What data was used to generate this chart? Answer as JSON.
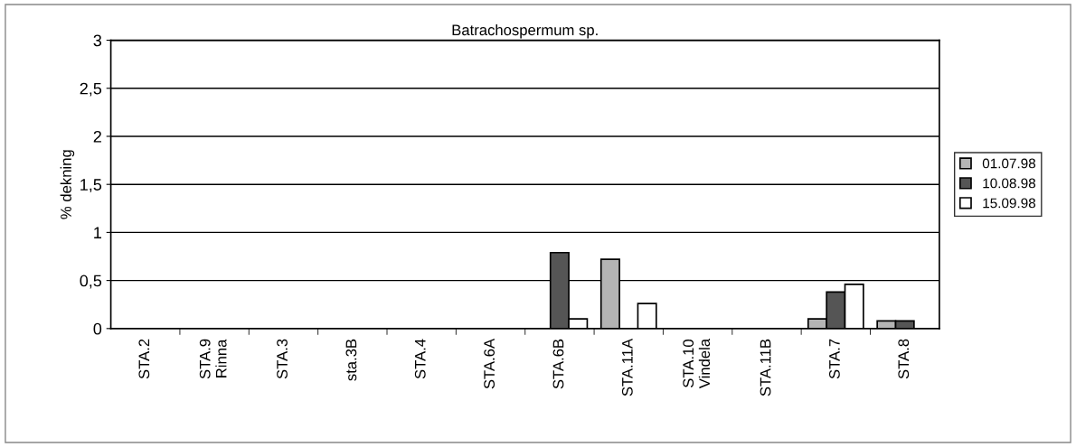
{
  "chart_data": {
    "type": "bar",
    "title": "Batrachospermum sp.",
    "ylabel": "% dekning",
    "categories": [
      "STA.2",
      "STA.9\nRinna",
      "STA.3",
      "sta.3B",
      "STA.4",
      "STA.6A",
      "STA.6B",
      "STA.11A",
      "STA.10\nVindela",
      "STA.11B",
      "STA.7",
      "STA.8"
    ],
    "series": [
      {
        "name": "01.07.98",
        "color": "#b4b4b4",
        "values": [
          0,
          0,
          0,
          0,
          0,
          0,
          0,
          0.72,
          0,
          0,
          0.1,
          0.08
        ]
      },
      {
        "name": "10.08.98",
        "color": "#555555",
        "values": [
          0,
          0,
          0,
          0,
          0,
          0,
          0.79,
          0,
          0,
          0,
          0.38,
          0.08
        ]
      },
      {
        "name": "15.09.98",
        "color": "#ffffff",
        "values": [
          0,
          0,
          0,
          0,
          0,
          0,
          0.1,
          0.26,
          0,
          0,
          0.46,
          0
        ]
      }
    ],
    "ylim": [
      0,
      3
    ],
    "yticks": [
      0,
      {
        "value": 0.5,
        "label": "0,5"
      },
      1,
      {
        "value": 1.5,
        "label": "1,5"
      },
      2,
      {
        "value": 2.5,
        "label": "2,5"
      },
      3
    ],
    "grid": "y",
    "legend": "right"
  }
}
